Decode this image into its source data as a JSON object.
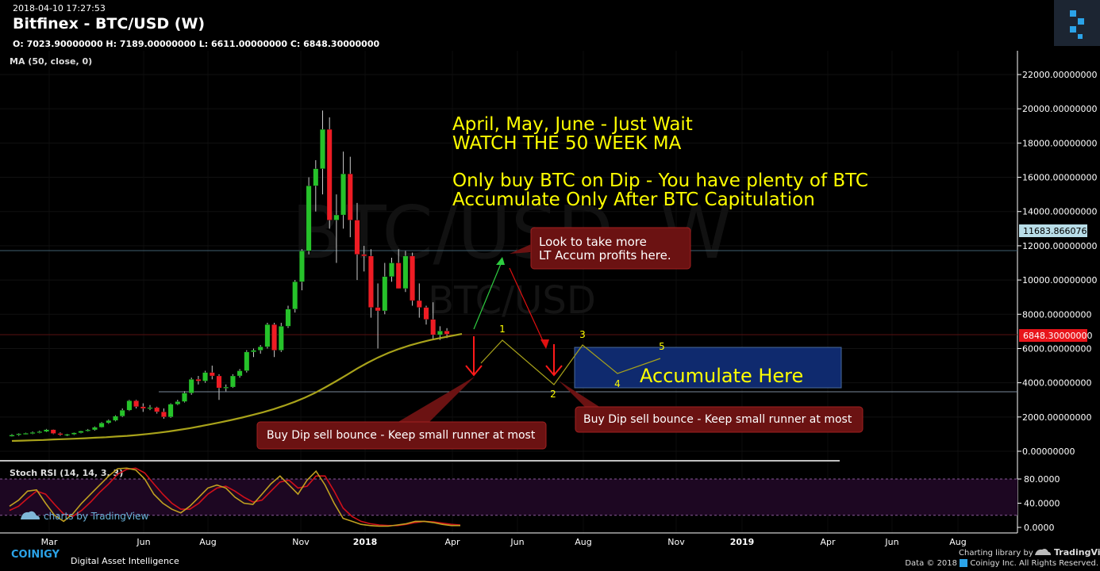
{
  "header": {
    "timestamp": "2018-04-10 17:27:53",
    "title": "Bitfinex - BTC/USD (W)",
    "ohlc": "O: 7023.90000000 H: 7189.00000000 L: 6611.00000000 C: 6848.30000000",
    "ma_label": "MA (50, close, 0)"
  },
  "watermark": {
    "main": "BTC/USD, W",
    "sub": "BTC/USD"
  },
  "colors": {
    "up": "#26c22a",
    "down": "#ee1c24",
    "ma": "#a8a21a",
    "note": "#ffff00",
    "callout": "#6b1212",
    "accum_box": "#0f2a6e"
  },
  "chart_data": [
    {
      "type": "candlestick",
      "title": "Bitfinex - BTC/USD (W)",
      "ylim": [
        -500,
        23000
      ],
      "y_ticks": [
        "22000.00000000",
        "20000.00000000",
        "18000.00000000",
        "16000.00000000",
        "14000.00000000",
        "12000.00000000",
        "10000.00000000",
        "8000.00000000",
        "6000.00000000",
        "4000.00000000",
        "2000.00000000",
        "0.00000000"
      ],
      "x_ticks": [
        "Mar",
        "Jun",
        "Aug",
        "Nov",
        "2018",
        "Apr",
        "Jun",
        "Aug",
        "Nov",
        "2019",
        "Apr",
        "Jun",
        "Aug"
      ],
      "candles": [
        [
          870,
          1000,
          850,
          950
        ],
        [
          950,
          1050,
          900,
          1020
        ],
        [
          1020,
          1080,
          980,
          1050
        ],
        [
          1050,
          1150,
          1000,
          1100
        ],
        [
          1100,
          1200,
          1050,
          1150
        ],
        [
          1150,
          1300,
          1120,
          1260
        ],
        [
          1260,
          1280,
          1000,
          1040
        ],
        [
          1040,
          1100,
          900,
          960
        ],
        [
          960,
          1020,
          880,
          990
        ],
        [
          990,
          1100,
          950,
          1080
        ],
        [
          1080,
          1200,
          1050,
          1180
        ],
        [
          1180,
          1300,
          1150,
          1250
        ],
        [
          1250,
          1450,
          1200,
          1400
        ],
        [
          1400,
          1700,
          1380,
          1650
        ],
        [
          1650,
          1850,
          1600,
          1800
        ],
        [
          1800,
          2100,
          1750,
          2050
        ],
        [
          2050,
          2500,
          2000,
          2400
        ],
        [
          2400,
          3000,
          2350,
          2950
        ],
        [
          2950,
          3000,
          2500,
          2600
        ],
        [
          2600,
          2800,
          2300,
          2500
        ],
        [
          2500,
          2700,
          2400,
          2550
        ],
        [
          2550,
          2600,
          2200,
          2300
        ],
        [
          2300,
          2500,
          1900,
          2000
        ],
        [
          2000,
          2800,
          1950,
          2750
        ],
        [
          2750,
          3000,
          2700,
          2900
        ],
        [
          2900,
          3500,
          2850,
          3400
        ],
        [
          3400,
          4300,
          3300,
          4200
        ],
        [
          4200,
          4400,
          3900,
          4100
        ],
        [
          4100,
          4700,
          4000,
          4600
        ],
        [
          4600,
          5000,
          4200,
          4400
        ],
        [
          4400,
          4500,
          3000,
          3700
        ],
        [
          3700,
          3900,
          3500,
          3750
        ],
        [
          3750,
          4500,
          3700,
          4400
        ],
        [
          4400,
          4800,
          4300,
          4700
        ],
        [
          4700,
          5900,
          4600,
          5800
        ],
        [
          5800,
          6000,
          5500,
          5900
        ],
        [
          5900,
          6200,
          5700,
          6100
        ],
        [
          6100,
          7500,
          6000,
          7400
        ],
        [
          7400,
          7500,
          5500,
          5900
        ],
        [
          5900,
          7500,
          5800,
          7300
        ],
        [
          7300,
          8500,
          7200,
          8300
        ],
        [
          8300,
          10000,
          8100,
          9900
        ],
        [
          9900,
          11800,
          9400,
          11700
        ],
        [
          11700,
          16000,
          11500,
          15500
        ],
        [
          15500,
          17000,
          14000,
          16500
        ],
        [
          16500,
          19900,
          15000,
          18800
        ],
        [
          18800,
          19500,
          13000,
          13500
        ],
        [
          13500,
          15000,
          11000,
          13800
        ],
        [
          13800,
          17500,
          13000,
          16200
        ],
        [
          16200,
          17200,
          12500,
          13500
        ],
        [
          13500,
          14500,
          10000,
          11500
        ],
        [
          11500,
          12000,
          10500,
          11400
        ],
        [
          11400,
          11800,
          7800,
          8400
        ],
        [
          8400,
          9800,
          6000,
          8200
        ],
        [
          8200,
          11000,
          8000,
          10200
        ],
        [
          10200,
          11300,
          9900,
          11000
        ],
        [
          11000,
          11800,
          9500,
          9500
        ],
        [
          9500,
          11700,
          9300,
          11400
        ],
        [
          11400,
          11600,
          8500,
          8800
        ],
        [
          8800,
          9800,
          7800,
          8400
        ],
        [
          8400,
          8500,
          7400,
          7700
        ],
        [
          7700,
          8700,
          6500,
          6800
        ],
        [
          6800,
          7300,
          6500,
          7023
        ],
        [
          7023,
          7189,
          6611,
          6848
        ]
      ],
      "ma50": [
        600,
        620,
        640,
        660,
        690,
        710,
        730,
        760,
        790,
        820,
        860,
        900,
        950,
        1010,
        1080,
        1160,
        1250,
        1350,
        1460,
        1580,
        1700,
        1830,
        1970,
        2120,
        2280,
        2460,
        2660,
        2880,
        3130,
        3420,
        3750,
        4100,
        4460,
        4830,
        5170,
        5480,
        5750,
        5980,
        6180,
        6350,
        6500,
        6620,
        6740,
        6848
      ],
      "price_labels": [
        "11683.86607645",
        "6848.30000000"
      ]
    },
    {
      "type": "line",
      "title": "Stoch RSI (14, 14, 3, 3)",
      "ylim": [
        -5,
        110
      ],
      "y_ticks": [
        "80.0000",
        "40.0000",
        "0.0000"
      ],
      "k": [
        35,
        45,
        60,
        62,
        40,
        20,
        10,
        22,
        40,
        55,
        70,
        85,
        97,
        98,
        95,
        80,
        55,
        40,
        30,
        24,
        35,
        50,
        65,
        70,
        65,
        50,
        40,
        38,
        55,
        72,
        85,
        70,
        55,
        78,
        93,
        70,
        40,
        15,
        10,
        5,
        3,
        2,
        2,
        4,
        6,
        10,
        10,
        8,
        5,
        3,
        3
      ],
      "d": [
        28,
        35,
        48,
        60,
        55,
        38,
        22,
        18,
        28,
        42,
        58,
        72,
        88,
        96,
        98,
        90,
        72,
        55,
        40,
        30,
        30,
        40,
        55,
        65,
        68,
        60,
        50,
        42,
        45,
        60,
        75,
        78,
        65,
        68,
        85,
        85,
        60,
        32,
        18,
        10,
        6,
        4,
        3,
        3,
        5,
        8,
        10,
        9,
        7,
        5,
        4
      ]
    }
  ],
  "notes": {
    "line1": "April, May, June - Just Wait",
    "line2": "WATCH THE 50 WEEK MA",
    "line3": "Only buy BTC on Dip - You have plenty of BTC",
    "line4": "Accumulate Only After BTC Capitulation"
  },
  "callouts": {
    "top_line1": "Look to take more",
    "top_line2": "LT Accum profits here.",
    "left": "Buy Dip sell bounce - Keep small runner at most",
    "right": "Buy Dip sell bounce - Keep small runner at most"
  },
  "accumulate": "Accumulate Here",
  "wave_labels": [
    "1",
    "2",
    "3",
    "4",
    "5"
  ],
  "footer": {
    "tv_badge": "charts by TradingView",
    "brand": "COINIGY",
    "tagline": "Digital Asset Intelligence",
    "lib": "Charting library by",
    "tv": "TradingView",
    "copyright": "Data © 2018",
    "copyright2": "Coinigy Inc. All Rights Reserved."
  }
}
